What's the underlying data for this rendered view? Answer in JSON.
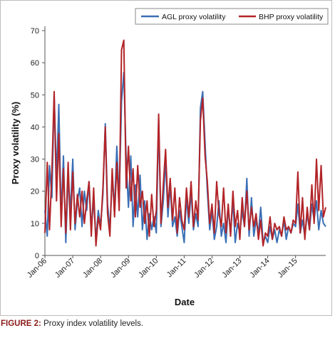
{
  "caption": {
    "label": "FIGURE 2:",
    "text": "Proxy index volatility levels."
  },
  "chart_data": {
    "type": "line",
    "title": "",
    "xlabel": "Date",
    "ylabel": "Proxy volatility (%)",
    "ylim": [
      0,
      70
    ],
    "yticks": [
      0,
      10,
      20,
      30,
      40,
      50,
      60,
      70
    ],
    "xlim": [
      "2006-01",
      "2016-02"
    ],
    "xticks": [
      "Jan-06",
      "Jan-07",
      "Jan-08",
      "Jan-09",
      "Jan-10",
      "Jan-11",
      "Jan-12",
      "Jan-13",
      "Jan-14",
      "Jan-15"
    ],
    "grid": false,
    "legend": "top-right",
    "series": [
      {
        "name": "AGL proxy volatility",
        "color": "#3a6fb5",
        "points": [
          [
            "2006-01",
            14
          ],
          [
            "2006-02",
            6
          ],
          [
            "2006-03",
            28
          ],
          [
            "2006-04",
            18
          ],
          [
            "2006-05",
            50
          ],
          [
            "2006-06",
            24
          ],
          [
            "2006-07",
            47
          ],
          [
            "2006-08",
            12
          ],
          [
            "2006-09",
            31
          ],
          [
            "2006-10",
            4
          ],
          [
            "2006-11",
            24
          ],
          [
            "2006-12",
            14
          ],
          [
            "2007-01",
            30
          ],
          [
            "2007-02",
            8
          ],
          [
            "2007-03",
            17
          ],
          [
            "2007-04",
            21
          ],
          [
            "2007-05",
            9
          ],
          [
            "2007-06",
            20
          ],
          [
            "2007-07",
            14
          ],
          [
            "2007-08",
            23
          ],
          [
            "2007-09",
            9
          ],
          [
            "2007-10",
            17
          ],
          [
            "2007-11",
            5
          ],
          [
            "2007-12",
            14
          ],
          [
            "2008-01",
            9
          ],
          [
            "2008-02",
            19
          ],
          [
            "2008-03",
            41
          ],
          [
            "2008-04",
            16
          ],
          [
            "2008-05",
            8
          ],
          [
            "2008-06",
            24
          ],
          [
            "2008-07",
            15
          ],
          [
            "2008-08",
            34
          ],
          [
            "2008-09",
            17
          ],
          [
            "2008-10",
            48
          ],
          [
            "2008-11",
            57
          ],
          [
            "2008-12",
            30
          ],
          [
            "2009-01",
            15
          ],
          [
            "2009-02",
            31
          ],
          [
            "2009-03",
            9
          ],
          [
            "2009-04",
            22
          ],
          [
            "2009-05",
            12
          ],
          [
            "2009-06",
            25
          ],
          [
            "2009-07",
            8
          ],
          [
            "2009-08",
            17
          ],
          [
            "2009-09",
            5
          ],
          [
            "2009-10",
            13
          ],
          [
            "2009-11",
            8
          ],
          [
            "2009-12",
            12
          ],
          [
            "2010-01",
            7
          ],
          [
            "2010-02",
            42
          ],
          [
            "2010-03",
            9
          ],
          [
            "2010-04",
            17
          ],
          [
            "2010-05",
            30
          ],
          [
            "2010-06",
            12
          ],
          [
            "2010-07",
            22
          ],
          [
            "2010-08",
            9
          ],
          [
            "2010-09",
            12
          ],
          [
            "2010-10",
            6
          ],
          [
            "2010-11",
            14
          ],
          [
            "2010-12",
            9
          ],
          [
            "2011-01",
            4
          ],
          [
            "2011-02",
            18
          ],
          [
            "2011-03",
            10
          ],
          [
            "2011-04",
            20
          ],
          [
            "2011-05",
            8
          ],
          [
            "2011-06",
            13
          ],
          [
            "2011-07",
            9
          ],
          [
            "2011-08",
            46
          ],
          [
            "2011-09",
            51
          ],
          [
            "2011-10",
            35
          ],
          [
            "2011-11",
            20
          ],
          [
            "2011-12",
            8
          ],
          [
            "2012-01",
            14
          ],
          [
            "2012-02",
            5
          ],
          [
            "2012-03",
            9
          ],
          [
            "2012-04",
            17
          ],
          [
            "2012-05",
            6
          ],
          [
            "2012-06",
            10
          ],
          [
            "2012-07",
            4
          ],
          [
            "2012-08",
            15
          ],
          [
            "2012-09",
            7
          ],
          [
            "2012-10",
            17
          ],
          [
            "2012-11",
            4
          ],
          [
            "2012-12",
            10
          ],
          [
            "2013-01",
            7
          ],
          [
            "2013-02",
            14
          ],
          [
            "2013-03",
            9
          ],
          [
            "2013-04",
            24
          ],
          [
            "2013-05",
            6
          ],
          [
            "2013-06",
            18
          ],
          [
            "2013-07",
            6
          ],
          [
            "2013-08",
            11
          ],
          [
            "2013-09",
            7
          ],
          [
            "2013-10",
            15
          ],
          [
            "2013-11",
            4
          ],
          [
            "2013-12",
            6
          ],
          [
            "2014-01",
            4
          ],
          [
            "2014-02",
            9
          ],
          [
            "2014-03",
            5
          ],
          [
            "2014-04",
            8
          ],
          [
            "2014-05",
            4
          ],
          [
            "2014-06",
            8
          ],
          [
            "2014-07",
            6
          ],
          [
            "2014-08",
            11
          ],
          [
            "2014-09",
            5
          ],
          [
            "2014-10",
            9
          ],
          [
            "2014-11",
            7
          ],
          [
            "2014-12",
            10
          ],
          [
            "2015-01",
            9
          ],
          [
            "2015-02",
            16
          ],
          [
            "2015-03",
            7
          ],
          [
            "2015-04",
            11
          ],
          [
            "2015-05",
            6
          ],
          [
            "2015-06",
            13
          ],
          [
            "2015-07",
            8
          ],
          [
            "2015-08",
            16
          ],
          [
            "2015-09",
            11
          ],
          [
            "2015-10",
            17
          ],
          [
            "2015-11",
            8
          ],
          [
            "2015-12",
            14
          ],
          [
            "2016-01",
            10
          ],
          [
            "2016-02",
            9
          ]
        ]
      },
      {
        "name": "BHP proxy volatility",
        "color": "#b22428",
        "points": [
          [
            "2006-01",
            7
          ],
          [
            "2006-02",
            29
          ],
          [
            "2006-03",
            8
          ],
          [
            "2006-04",
            26
          ],
          [
            "2006-05",
            51
          ],
          [
            "2006-06",
            17
          ],
          [
            "2006-07",
            38
          ],
          [
            "2006-08",
            9
          ],
          [
            "2006-09",
            27
          ],
          [
            "2006-10",
            7
          ],
          [
            "2006-11",
            29
          ],
          [
            "2006-12",
            8
          ],
          [
            "2007-01",
            26
          ],
          [
            "2007-02",
            10
          ],
          [
            "2007-03",
            19
          ],
          [
            "2007-04",
            12
          ],
          [
            "2007-05",
            20
          ],
          [
            "2007-06",
            10
          ],
          [
            "2007-07",
            17
          ],
          [
            "2007-08",
            23
          ],
          [
            "2007-09",
            6
          ],
          [
            "2007-10",
            21
          ],
          [
            "2007-11",
            3
          ],
          [
            "2007-12",
            12
          ],
          [
            "2008-01",
            8
          ],
          [
            "2008-02",
            21
          ],
          [
            "2008-03",
            40
          ],
          [
            "2008-04",
            13
          ],
          [
            "2008-05",
            6
          ],
          [
            "2008-06",
            27
          ],
          [
            "2008-07",
            12
          ],
          [
            "2008-08",
            29
          ],
          [
            "2008-09",
            14
          ],
          [
            "2008-10",
            64
          ],
          [
            "2008-11",
            67
          ],
          [
            "2008-12",
            21
          ],
          [
            "2009-01",
            34
          ],
          [
            "2009-02",
            17
          ],
          [
            "2009-03",
            27
          ],
          [
            "2009-04",
            12
          ],
          [
            "2009-05",
            28
          ],
          [
            "2009-06",
            15
          ],
          [
            "2009-07",
            20
          ],
          [
            "2009-08",
            10
          ],
          [
            "2009-09",
            17
          ],
          [
            "2009-10",
            6
          ],
          [
            "2009-11",
            19
          ],
          [
            "2009-12",
            9
          ],
          [
            "2010-01",
            14
          ],
          [
            "2010-02",
            44
          ],
          [
            "2010-03",
            10
          ],
          [
            "2010-04",
            22
          ],
          [
            "2010-05",
            33
          ],
          [
            "2010-06",
            15
          ],
          [
            "2010-07",
            24
          ],
          [
            "2010-08",
            11
          ],
          [
            "2010-09",
            21
          ],
          [
            "2010-10",
            7
          ],
          [
            "2010-11",
            18
          ],
          [
            "2010-12",
            11
          ],
          [
            "2011-01",
            8
          ],
          [
            "2011-02",
            21
          ],
          [
            "2011-03",
            12
          ],
          [
            "2011-04",
            23
          ],
          [
            "2011-05",
            9
          ],
          [
            "2011-06",
            17
          ],
          [
            "2011-07",
            11
          ],
          [
            "2011-08",
            42
          ],
          [
            "2011-09",
            49
          ],
          [
            "2011-10",
            31
          ],
          [
            "2011-11",
            23
          ],
          [
            "2011-12",
            10
          ],
          [
            "2012-01",
            16
          ],
          [
            "2012-02",
            7
          ],
          [
            "2012-03",
            23
          ],
          [
            "2012-04",
            13
          ],
          [
            "2012-05",
            9
          ],
          [
            "2012-06",
            21
          ],
          [
            "2012-07",
            7
          ],
          [
            "2012-08",
            16
          ],
          [
            "2012-09",
            6
          ],
          [
            "2012-10",
            20
          ],
          [
            "2012-11",
            9
          ],
          [
            "2012-12",
            14
          ],
          [
            "2013-01",
            5
          ],
          [
            "2013-02",
            18
          ],
          [
            "2013-03",
            9
          ],
          [
            "2013-04",
            20
          ],
          [
            "2013-05",
            8
          ],
          [
            "2013-06",
            15
          ],
          [
            "2013-07",
            9
          ],
          [
            "2013-08",
            13
          ],
          [
            "2013-09",
            5
          ],
          [
            "2013-10",
            11
          ],
          [
            "2013-11",
            3
          ],
          [
            "2013-12",
            7
          ],
          [
            "2014-01",
            6
          ],
          [
            "2014-02",
            12
          ],
          [
            "2014-03",
            5
          ],
          [
            "2014-04",
            10
          ],
          [
            "2014-05",
            8
          ],
          [
            "2014-06",
            9
          ],
          [
            "2014-07",
            6
          ],
          [
            "2014-08",
            12
          ],
          [
            "2014-09",
            8
          ],
          [
            "2014-10",
            9
          ],
          [
            "2014-11",
            7
          ],
          [
            "2014-12",
            11
          ],
          [
            "2015-01",
            10
          ],
          [
            "2015-02",
            26
          ],
          [
            "2015-03",
            7
          ],
          [
            "2015-04",
            18
          ],
          [
            "2015-05",
            5
          ],
          [
            "2015-06",
            15
          ],
          [
            "2015-07",
            8
          ],
          [
            "2015-08",
            22
          ],
          [
            "2015-09",
            10
          ],
          [
            "2015-10",
            30
          ],
          [
            "2015-11",
            14
          ],
          [
            "2015-12",
            28
          ],
          [
            "2016-01",
            12
          ],
          [
            "2016-02",
            15
          ]
        ]
      }
    ]
  }
}
